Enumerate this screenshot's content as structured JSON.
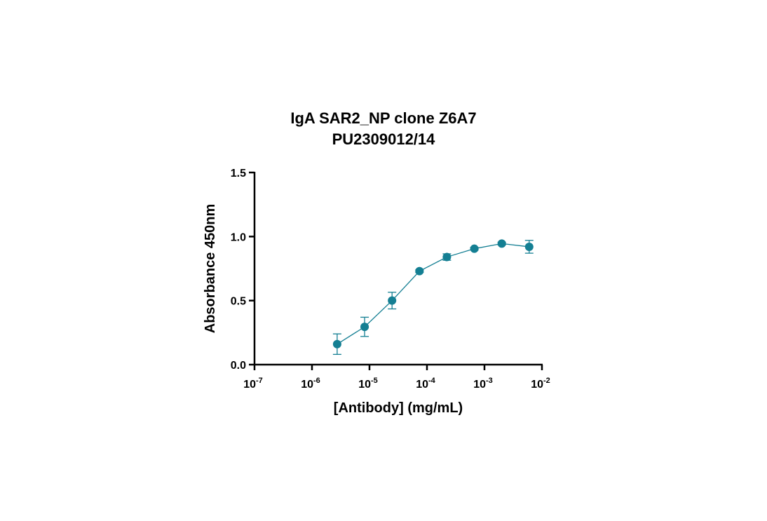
{
  "chart_data": {
    "type": "scatter",
    "title": "IgA SAR2_NP clone Z6A7",
    "subtitle": "PU2309012/14",
    "xlabel": "[Antibody] (mg/mL)",
    "ylabel": "Absorbance 450nm",
    "xscale": "log",
    "xlim": [
      1e-07,
      0.01
    ],
    "ylim": [
      0,
      1.5
    ],
    "yticks": [
      "0.0",
      "0.5",
      "1.0",
      "1.5"
    ],
    "xticks": [
      {
        "base": "10",
        "exp": "-7",
        "value": 1e-07
      },
      {
        "base": "10",
        "exp": "-6",
        "value": 1e-06
      },
      {
        "base": "10",
        "exp": "-5",
        "value": 1e-05
      },
      {
        "base": "10",
        "exp": "-4",
        "value": 0.0001
      },
      {
        "base": "10",
        "exp": "-3",
        "value": 0.001
      },
      {
        "base": "10",
        "exp": "-2",
        "value": 0.01
      }
    ],
    "color": "#147f93",
    "grid": false,
    "series": [
      {
        "x": [
          2.74e-06,
          8.23e-06,
          2.47e-05,
          7.41e-05,
          0.000222,
          0.000667,
          0.002,
          0.006
        ],
        "y": [
          0.16,
          0.295,
          0.5,
          0.73,
          0.84,
          0.905,
          0.945,
          0.92
        ],
        "err": [
          0.08,
          0.075,
          0.065,
          0.01,
          0.025,
          0.01,
          0.01,
          0.05
        ]
      }
    ]
  }
}
